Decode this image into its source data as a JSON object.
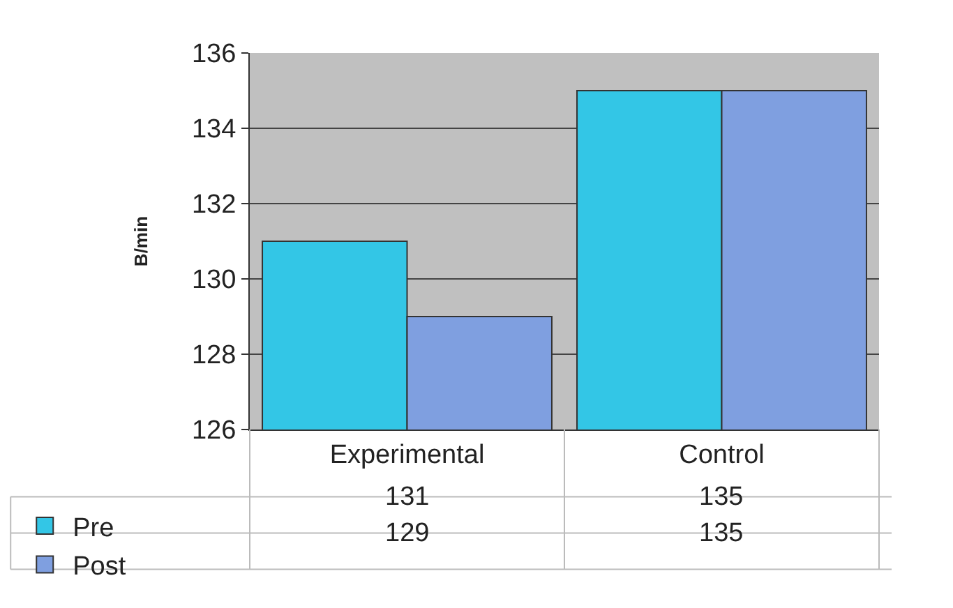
{
  "chart_data": {
    "type": "bar",
    "ylabel": "B/min",
    "categories": [
      "Experimental",
      "Control"
    ],
    "series": [
      {
        "name": "Pre",
        "color": "#33c6e6",
        "values": [
          131,
          135
        ]
      },
      {
        "name": "Post",
        "color": "#7f9fe0",
        "values": [
          129,
          135
        ]
      }
    ],
    "ylim": [
      126,
      136
    ],
    "yticks": [
      126,
      128,
      130,
      132,
      134,
      136
    ],
    "grid": "y",
    "legend": "bottom left",
    "data_labels": true
  }
}
